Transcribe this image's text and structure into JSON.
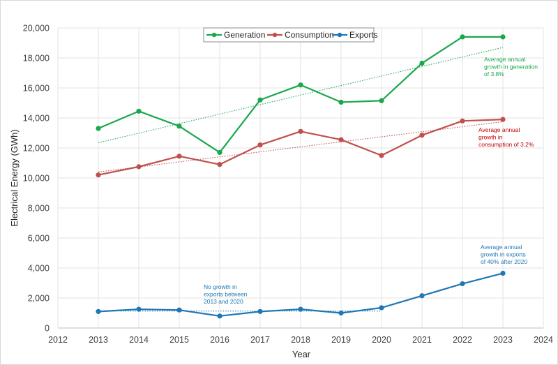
{
  "chart_data": {
    "type": "line",
    "xlabel": "Year",
    "ylabel": "Electrical Energy (GWh)",
    "xlim": [
      2012,
      2024
    ],
    "ylim": [
      0,
      20000
    ],
    "x_ticks": [
      "2012",
      "2013",
      "2014",
      "2015",
      "2016",
      "2017",
      "2018",
      "2019",
      "2020",
      "2021",
      "2022",
      "2023",
      "2024"
    ],
    "y_ticks": [
      "0",
      "2,000",
      "4,000",
      "6,000",
      "8,000",
      "10,000",
      "12,000",
      "14,000",
      "16,000",
      "18,000",
      "20,000"
    ],
    "x": [
      2013,
      2014,
      2015,
      2016,
      2017,
      2018,
      2019,
      2020,
      2021,
      2022,
      2023
    ],
    "grid": true,
    "legend_position": "top-center",
    "series": [
      {
        "name": "Generation",
        "color": "#1aa84b",
        "values": [
          13300,
          14450,
          13450,
          11700,
          15200,
          16200,
          15050,
          15150,
          17650,
          19400,
          19400
        ],
        "trend": [
          12350,
          18700
        ]
      },
      {
        "name": "Consumption",
        "color": "#c0504d",
        "values": [
          10200,
          10750,
          11450,
          10900,
          12200,
          13100,
          12550,
          11500,
          12850,
          13800,
          13900
        ],
        "trend": [
          10400,
          13750
        ]
      },
      {
        "name": "Exports",
        "color": "#1f77b4",
        "values": [
          1100,
          1250,
          1200,
          800,
          1100,
          1250,
          1000,
          1350,
          2150,
          2950,
          3650
        ]
      }
    ],
    "annotations": [
      {
        "id": "gen",
        "color": "#1aa84b",
        "lines": [
          "Average annual",
          "growth in generation",
          "of 3.8%"
        ]
      },
      {
        "id": "cons",
        "color": "#c00000",
        "lines": [
          "Average annual",
          "growth in",
          "consumption of 3.2%"
        ]
      },
      {
        "id": "exp-late",
        "color": "#1f77b4",
        "lines": [
          "Average annual",
          "growth in exports",
          "of 40% after 2020"
        ]
      },
      {
        "id": "exp-early",
        "color": "#1f77b4",
        "lines": [
          "No growth in",
          "exports between",
          "2013 and 2020"
        ]
      }
    ]
  }
}
